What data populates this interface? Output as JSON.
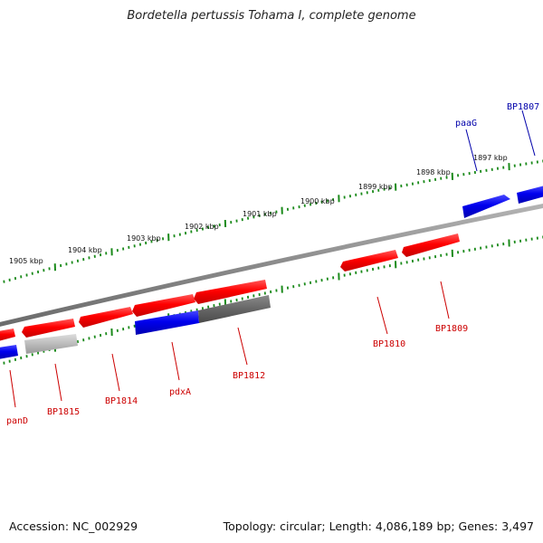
{
  "title": "Bordetella pertussis Tohama I, complete genome",
  "footer": {
    "accession": "Accession: NC_002929",
    "summary": "Topology: circular; Length: 4,086,189 bp; Genes: 3,497"
  },
  "colors": {
    "forward_gene": "#ff0000",
    "reverse_gene": "#0000ee",
    "pseudo_dark": "#666666",
    "pseudo_light": "#bbbbbb",
    "tick": "#1a8a1a",
    "backbone": "#888888",
    "label_forward": "#cc0000",
    "label_reverse": "#0000aa"
  },
  "ruler_labels": [
    "1897 kbp",
    "1898 kbp",
    "1899 kbp",
    "1900 kbp",
    "1901 kbp",
    "1902 kbp",
    "1903 kbp",
    "1904 kbp",
    "1905 kbp"
  ],
  "gene_labels": [
    {
      "text": "BP1807",
      "color": "reverse"
    },
    {
      "text": "paaG",
      "color": "reverse"
    },
    {
      "text": "BP1809",
      "color": "forward"
    },
    {
      "text": "BP1810",
      "color": "forward"
    },
    {
      "text": "BP1812",
      "color": "forward"
    },
    {
      "text": "pdxA",
      "color": "forward"
    },
    {
      "text": "BP1814",
      "color": "forward"
    },
    {
      "text": "BP1815",
      "color": "forward"
    },
    {
      "text": "panD",
      "color": "forward"
    }
  ]
}
